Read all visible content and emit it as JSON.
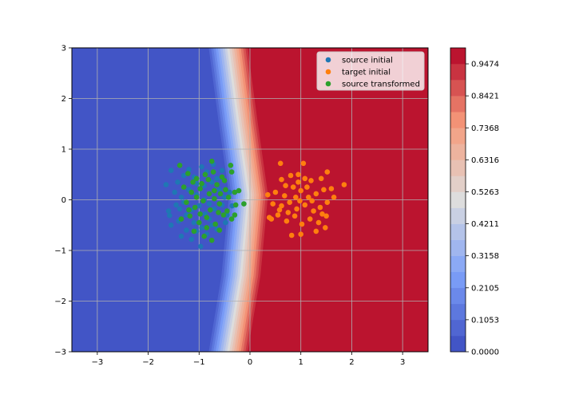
{
  "chart_data": {
    "type": "scatter",
    "background": "contourf",
    "xlim": [
      -3.5,
      3.5
    ],
    "ylim": [
      -3,
      3
    ],
    "xticks": [
      -3,
      -2,
      -1,
      0,
      1,
      2,
      3
    ],
    "xtick_labels": [
      "−3",
      "−2",
      "−1",
      "0",
      "1",
      "2",
      "3"
    ],
    "yticks": [
      -3,
      -2,
      -1,
      0,
      1,
      2,
      3
    ],
    "ytick_labels": [
      "−3",
      "−2",
      "−1",
      "0",
      "1",
      "2",
      "3"
    ],
    "grid": true,
    "legend_position": "top-right",
    "colormap": "coolwarm",
    "contour": {
      "centerline": [
        [
          -0.45,
          3
        ],
        [
          -0.25,
          1.5
        ],
        [
          -0.05,
          0.1
        ],
        [
          -0.2,
          -1.5
        ],
        [
          -0.45,
          -3
        ]
      ],
      "level_spacing": 0.045,
      "n_levels": 19
    },
    "colorbar": {
      "min": 0.0,
      "max": 1.0,
      "levels": 19,
      "ticks": [
        0.0,
        0.1053,
        0.2105,
        0.3158,
        0.4211,
        0.5263,
        0.6316,
        0.7368,
        0.8421,
        0.9474
      ],
      "tick_labels": [
        "0.0000",
        "0.1053",
        "0.2105",
        "0.3158",
        "0.4211",
        "0.5263",
        "0.6316",
        "0.7368",
        "0.8421",
        "0.9474"
      ]
    },
    "series": [
      {
        "name": "source initial",
        "color": "#1f77b4",
        "points": [
          [
            -1.55,
            0.58
          ],
          [
            -1.42,
            0.35
          ],
          [
            -1.3,
            0.48
          ],
          [
            -1.65,
            0.3
          ],
          [
            -1.2,
            0.6
          ],
          [
            -1.1,
            0.45
          ],
          [
            -0.95,
            0.65
          ],
          [
            -0.85,
            0.55
          ],
          [
            -0.72,
            0.7
          ],
          [
            -1.48,
            0.15
          ],
          [
            -1.35,
            0.05
          ],
          [
            -1.2,
            0.2
          ],
          [
            -1.05,
            0.1
          ],
          [
            -0.9,
            0.28
          ],
          [
            -0.75,
            0.35
          ],
          [
            -0.6,
            0.2
          ],
          [
            -0.5,
            0.05
          ],
          [
            -1.6,
            -0.22
          ],
          [
            -1.45,
            -0.1
          ],
          [
            -1.3,
            -0.05
          ],
          [
            -1.15,
            -0.2
          ],
          [
            -1.0,
            -0.12
          ],
          [
            -0.88,
            -0.28
          ],
          [
            -0.7,
            -0.18
          ],
          [
            -0.55,
            -0.1
          ],
          [
            -0.45,
            -0.3
          ],
          [
            -1.55,
            -0.5
          ],
          [
            -1.4,
            -0.42
          ],
          [
            -1.25,
            -0.6
          ],
          [
            -1.1,
            -0.45
          ],
          [
            -0.95,
            -0.55
          ],
          [
            -0.8,
            -0.38
          ],
          [
            -1.35,
            -0.72
          ],
          [
            -1.15,
            -0.78
          ],
          [
            -0.97,
            -0.92
          ],
          [
            -0.85,
            -0.68
          ],
          [
            -0.65,
            -0.58
          ],
          [
            -0.48,
            -0.45
          ],
          [
            -1.58,
            -0.31
          ],
          [
            -0.35,
            -0.12
          ],
          [
            -0.9,
            0.0
          ],
          [
            -1.05,
            0.32
          ],
          [
            -0.65,
            0.42
          ],
          [
            -0.4,
            0.15
          ],
          [
            -0.8,
            -0.08
          ],
          [
            -1.25,
            -0.3
          ],
          [
            -0.75,
            -0.5
          ],
          [
            -1.05,
            -0.62
          ],
          [
            -0.55,
            0.58
          ],
          [
            -1.38,
            -0.18
          ]
        ]
      },
      {
        "name": "target initial",
        "color": "#ff7f0e",
        "points": [
          [
            0.6,
            0.72
          ],
          [
            1.05,
            0.72
          ],
          [
            1.52,
            0.55
          ],
          [
            1.85,
            0.3
          ],
          [
            0.62,
            0.4
          ],
          [
            0.8,
            0.48
          ],
          [
            0.95,
            0.5
          ],
          [
            1.2,
            0.38
          ],
          [
            1.4,
            0.42
          ],
          [
            1.6,
            0.22
          ],
          [
            0.35,
            0.1
          ],
          [
            0.5,
            0.15
          ],
          [
            0.68,
            0.08
          ],
          [
            0.85,
            0.25
          ],
          [
            1.0,
            0.18
          ],
          [
            1.15,
            0.05
          ],
          [
            1.3,
            0.12
          ],
          [
            1.45,
            0.2
          ],
          [
            1.65,
            0.05
          ],
          [
            0.45,
            -0.08
          ],
          [
            0.62,
            -0.12
          ],
          [
            0.78,
            -0.05
          ],
          [
            0.92,
            -0.18
          ],
          [
            1.08,
            -0.1
          ],
          [
            1.25,
            -0.22
          ],
          [
            1.38,
            -0.15
          ],
          [
            1.52,
            -0.05
          ],
          [
            0.38,
            -0.35
          ],
          [
            0.55,
            -0.3
          ],
          [
            0.72,
            -0.42
          ],
          [
            0.88,
            -0.32
          ],
          [
            1.02,
            -0.48
          ],
          [
            1.18,
            -0.38
          ],
          [
            1.35,
            -0.45
          ],
          [
            1.5,
            -0.32
          ],
          [
            0.82,
            -0.7
          ],
          [
            1.0,
            -0.68
          ],
          [
            1.3,
            -0.62
          ],
          [
            1.48,
            -0.55
          ],
          [
            0.7,
            0.28
          ],
          [
            0.9,
            0.05
          ],
          [
            1.12,
            0.25
          ],
          [
            0.58,
            -0.2
          ],
          [
            1.22,
            -0.02
          ],
          [
            0.95,
            0.35
          ],
          [
            0.75,
            -0.25
          ],
          [
            1.08,
            0.42
          ],
          [
            0.42,
            -0.38
          ],
          [
            0.98,
            -0.02
          ],
          [
            1.42,
            -0.28
          ]
        ]
      },
      {
        "name": "source transformed",
        "color": "#2ca02c",
        "points": [
          [
            -1.38,
            0.68
          ],
          [
            -0.75,
            0.76
          ],
          [
            -0.38,
            0.68
          ],
          [
            -1.22,
            0.52
          ],
          [
            -1.05,
            0.42
          ],
          [
            -0.88,
            0.5
          ],
          [
            -0.72,
            0.55
          ],
          [
            -0.55,
            0.45
          ],
          [
            -0.36,
            0.55
          ],
          [
            -1.3,
            0.25
          ],
          [
            -1.15,
            0.15
          ],
          [
            -0.98,
            0.22
          ],
          [
            -0.8,
            0.12
          ],
          [
            -0.65,
            0.3
          ],
          [
            -0.48,
            0.2
          ],
          [
            -0.3,
            0.15
          ],
          [
            -1.25,
            -0.05
          ],
          [
            -1.08,
            -0.15
          ],
          [
            -0.92,
            -0.02
          ],
          [
            -0.78,
            -0.2
          ],
          [
            -0.6,
            -0.08
          ],
          [
            -0.45,
            -0.22
          ],
          [
            -0.28,
            -0.1
          ],
          [
            -0.12,
            -0.08
          ],
          [
            -1.35,
            -0.38
          ],
          [
            -1.18,
            -0.32
          ],
          [
            -1.0,
            -0.45
          ],
          [
            -0.85,
            -0.35
          ],
          [
            -0.68,
            -0.48
          ],
          [
            -0.52,
            -0.3
          ],
          [
            -0.36,
            -0.38
          ],
          [
            -1.1,
            -0.62
          ],
          [
            -0.9,
            -0.72
          ],
          [
            -0.75,
            -0.8
          ],
          [
            -0.6,
            -0.6
          ],
          [
            -1.05,
            0.05
          ],
          [
            -0.7,
            0.02
          ],
          [
            -0.42,
            0.05
          ],
          [
            -0.22,
            0.18
          ],
          [
            -0.95,
            0.32
          ],
          [
            -0.62,
            -0.25
          ],
          [
            -1.2,
            -0.2
          ],
          [
            -0.82,
            0.4
          ],
          [
            -0.5,
            0.38
          ],
          [
            -0.98,
            -0.28
          ],
          [
            -0.7,
            0.18
          ],
          [
            -0.3,
            -0.3
          ],
          [
            -1.12,
            0.35
          ],
          [
            -0.58,
            0.12
          ],
          [
            -0.85,
            -0.55
          ]
        ]
      }
    ]
  }
}
